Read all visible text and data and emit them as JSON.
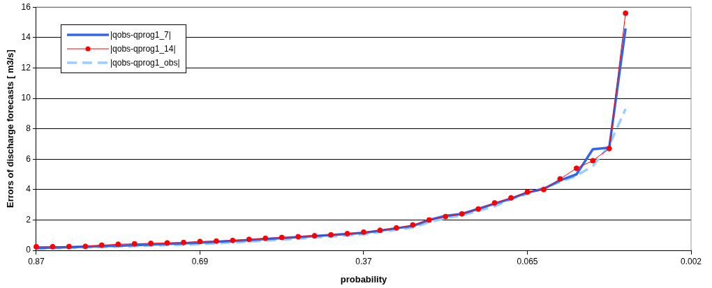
{
  "chart_data": {
    "type": "line",
    "xlabel": "probability",
    "ylabel": "Errors of discharge forecasts [ m3/s]",
    "categories": [
      "0.87",
      null,
      null,
      null,
      null,
      null,
      null,
      null,
      null,
      null,
      "0.69",
      null,
      null,
      null,
      null,
      null,
      null,
      null,
      null,
      null,
      "0.37",
      null,
      null,
      null,
      null,
      null,
      null,
      null,
      null,
      null,
      "0.065",
      null,
      null,
      null,
      null,
      null,
      null,
      null,
      null,
      null,
      "0.002"
    ],
    "ylim": [
      0,
      16
    ],
    "yticks": [
      0,
      2,
      4,
      6,
      8,
      10,
      12,
      14,
      16
    ],
    "grid": "y",
    "legend": "top left",
    "series": [
      {
        "name": "|qobs-qprog1_7|",
        "color": "#3366ee",
        "marker": "none",
        "line_style": "solid",
        "values": [
          0.15,
          0.18,
          0.21,
          0.24,
          0.27,
          0.3,
          0.34,
          0.38,
          0.42,
          0.46,
          0.5,
          0.56,
          0.62,
          0.68,
          0.74,
          0.8,
          0.87,
          0.94,
          1.01,
          1.08,
          1.15,
          1.3,
          1.45,
          1.6,
          2.0,
          2.27,
          2.4,
          2.73,
          3.07,
          3.4,
          3.8,
          4.05,
          4.6,
          5.0,
          6.65,
          6.75,
          14.6,
          null,
          null,
          null,
          null
        ]
      },
      {
        "name": "|qobs-qprog1_14|",
        "color": "#ff0000",
        "marker": "circle",
        "line_style": "solid",
        "values": [
          0.24,
          0.24,
          0.25,
          0.26,
          0.34,
          0.4,
          0.43,
          0.46,
          0.49,
          0.52,
          0.58,
          0.61,
          0.65,
          0.72,
          0.79,
          0.85,
          0.9,
          0.96,
          1.02,
          1.1,
          1.2,
          1.32,
          1.48,
          1.67,
          2.0,
          2.22,
          2.4,
          2.72,
          3.12,
          3.45,
          3.84,
          4.0,
          4.7,
          5.4,
          5.9,
          6.7,
          15.6,
          null,
          null,
          null,
          null
        ]
      },
      {
        "name": "|qobs-qprog1_obs|",
        "color": "#99ccff",
        "marker": "none",
        "line_style": "dashed",
        "values": [
          0.1,
          0.13,
          0.16,
          0.19,
          0.22,
          0.25,
          0.28,
          0.31,
          0.34,
          0.37,
          0.4,
          0.46,
          0.52,
          0.58,
          0.64,
          0.7,
          0.77,
          0.84,
          0.91,
          0.98,
          1.05,
          1.2,
          1.35,
          1.5,
          1.85,
          2.13,
          2.3,
          2.6,
          2.9,
          3.35,
          3.72,
          4.1,
          4.5,
          4.9,
          5.55,
          6.9,
          9.3,
          null,
          null,
          null,
          null
        ]
      }
    ]
  }
}
